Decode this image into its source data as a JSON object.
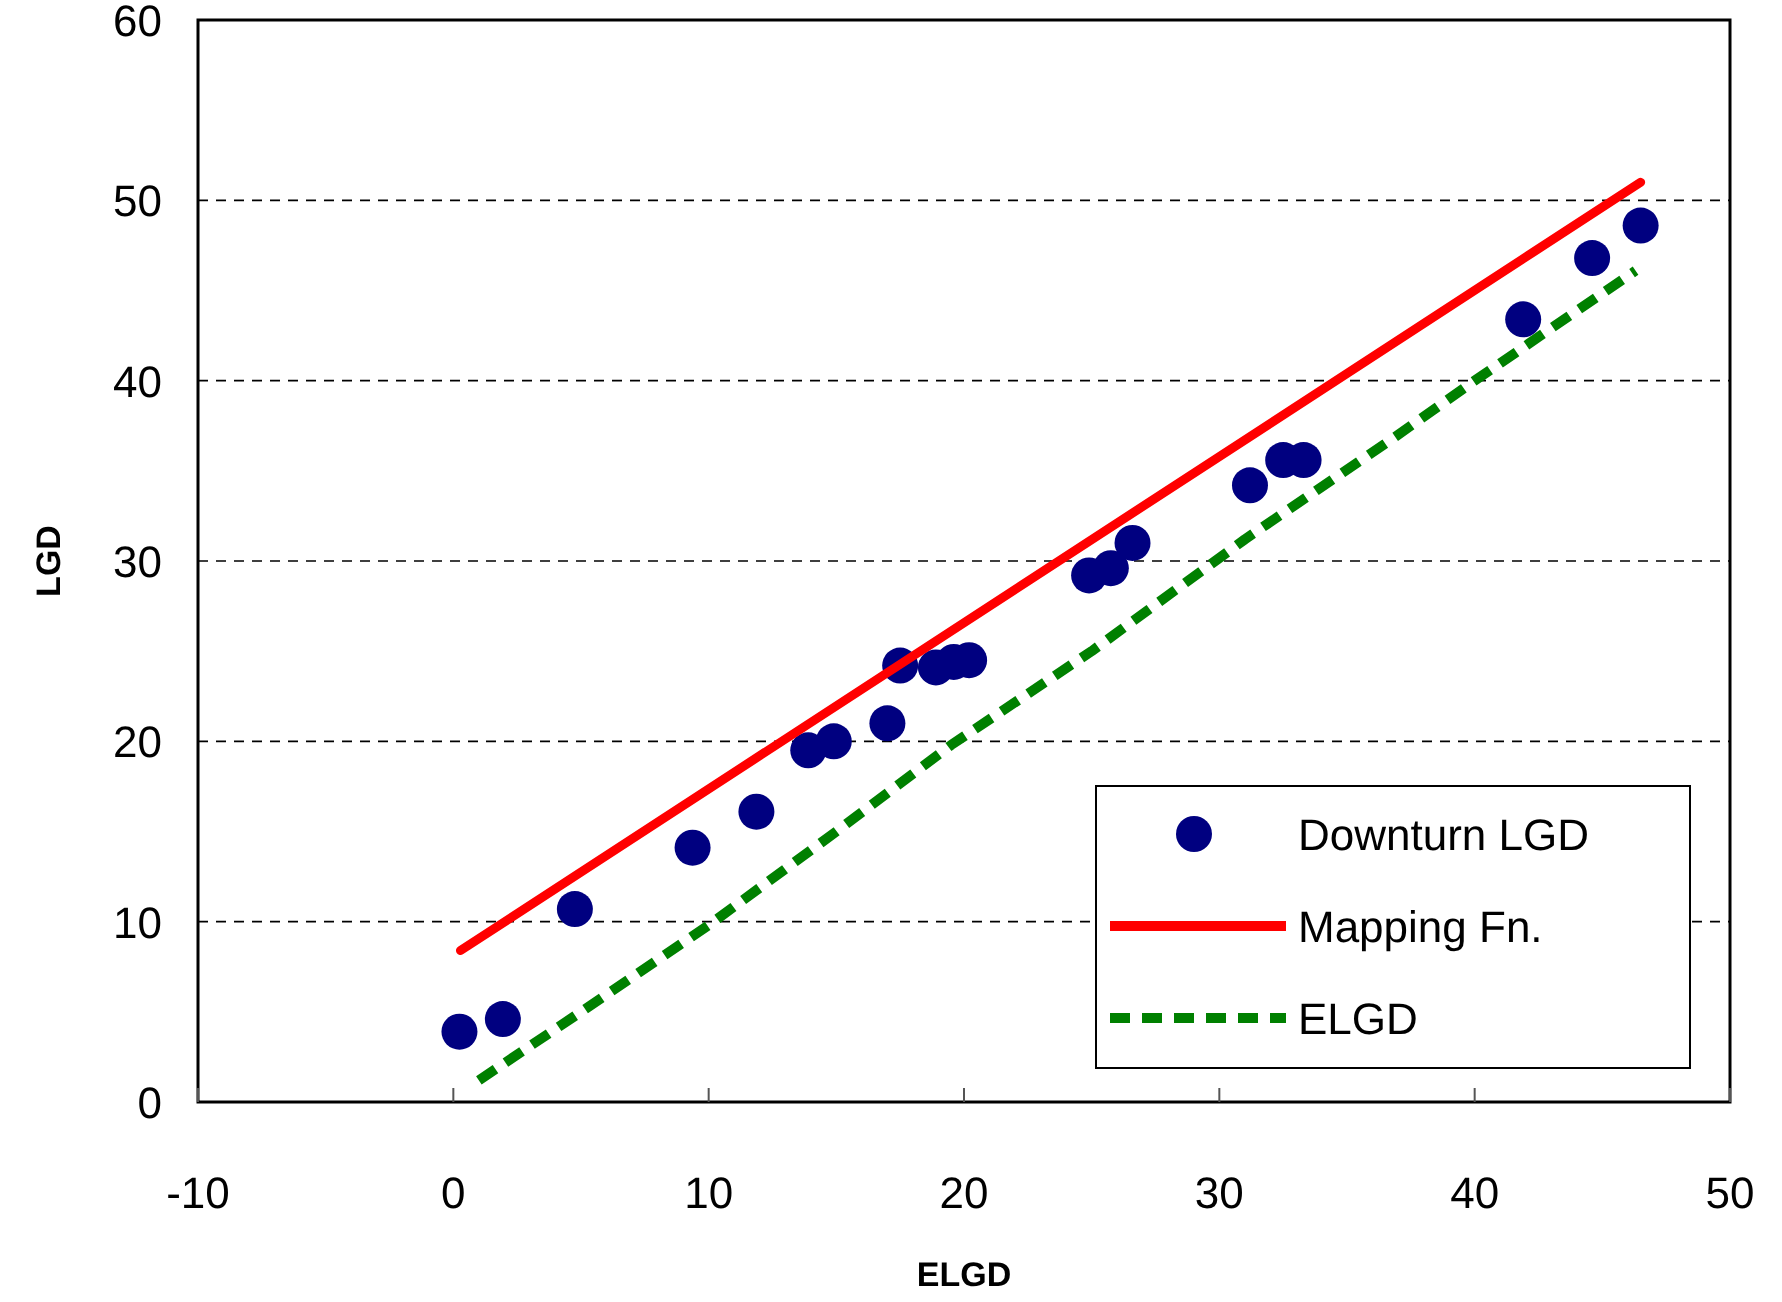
{
  "chart_data": {
    "type": "scatter",
    "xlabel": "ELGD",
    "ylabel": "LGD",
    "xlim": [
      -10,
      50
    ],
    "xticks": [
      -10,
      0,
      10,
      20,
      30,
      40,
      50
    ],
    "ylim": [
      0,
      60
    ],
    "yticks": [
      0,
      10,
      20,
      30,
      40,
      50,
      60
    ],
    "grid": "y",
    "legend": "bottom right",
    "series": [
      {
        "name": "Downturn LGD",
        "marker": "circle",
        "color": "#000080",
        "x": [
          0.24,
          1.94,
          4.76,
          9.37,
          11.87,
          13.9,
          14.9,
          17.0,
          17.5,
          18.9,
          19.6,
          20.2,
          24.9,
          25.75,
          26.6,
          31.2,
          32.5,
          33.3,
          41.9,
          44.6,
          46.5
        ],
        "values": [
          3.9,
          4.6,
          10.7,
          14.1,
          16.1,
          19.5,
          20.0,
          21.0,
          24.2,
          24.1,
          24.4,
          24.5,
          29.2,
          29.6,
          31.0,
          34.2,
          35.6,
          35.6,
          43.4,
          46.8,
          48.6
        ]
      },
      {
        "name": "Mapping Fn.",
        "type": "line",
        "marker": "none",
        "line_style": "solid",
        "color": "#ff0000",
        "x": [
          0.28,
          46.5
        ],
        "values": [
          8.4,
          51.0
        ]
      },
      {
        "name": "ELGD",
        "type": "line",
        "marker": "none",
        "line_style": "dashed",
        "color": "#008000",
        "x": [
          1.0,
          5,
          10,
          15,
          19.5,
          25,
          31,
          36.9,
          40,
          46.3
        ],
        "values": [
          1.2,
          5,
          9.8,
          15,
          19.8,
          25,
          31.2,
          36.9,
          40,
          46.1
        ]
      }
    ]
  }
}
